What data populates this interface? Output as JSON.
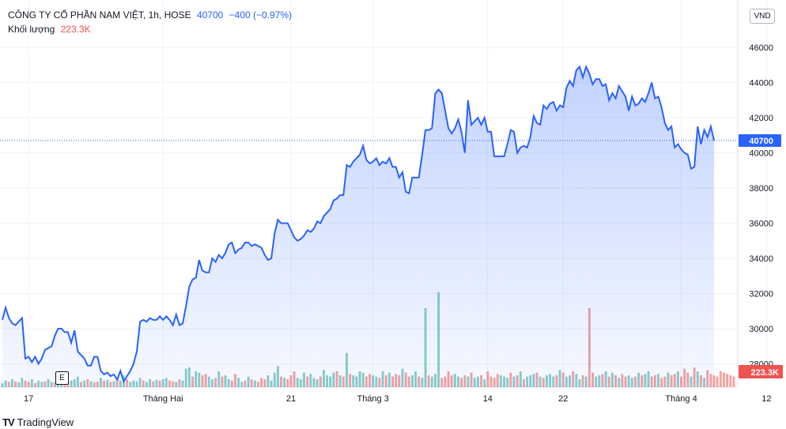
{
  "legend": {
    "title": "CÔNG TY CỔ PHẦN NAM VIỆT, 1h, HOSE",
    "price": "40700",
    "change": "−400 (−0.97%)",
    "volume_label": "Khối lượng",
    "volume": "223.3K"
  },
  "currency": "VND",
  "event_flag": "E",
  "brand": {
    "name": "TradingView",
    "logo": "TV"
  },
  "colors": {
    "line": "#2962ff",
    "area": "#2962ff",
    "vol_up": "#26a69a",
    "vol_down": "#ef5350",
    "grid": "#f0f3fa",
    "last_label": "#2962ff",
    "vol_label": "#ef5350"
  },
  "chart_data": {
    "type": "area",
    "yticks": [
      28000,
      30000,
      32000,
      34000,
      36000,
      38000,
      40000,
      42000,
      44000,
      46000
    ],
    "ylim": [
      26500,
      46000
    ],
    "xlabels": [
      "17",
      "Tháng Hai",
      "21",
      "Tháng 3",
      "14",
      "22",
      "Tháng 4",
      "12"
    ],
    "xlabel_index": [
      8,
      49,
      88,
      113,
      148,
      171,
      207,
      233
    ],
    "last_price": 40700,
    "last_volume": "223.3K",
    "prices": [
      30500,
      31200,
      30600,
      30300,
      30200,
      30400,
      30600,
      28300,
      28400,
      28100,
      28400,
      28000,
      28300,
      28800,
      28900,
      29000,
      29600,
      30000,
      30000,
      29800,
      29800,
      29200,
      29900,
      28700,
      28500,
      28300,
      27900,
      27900,
      28400,
      28400,
      27600,
      27400,
      27500,
      27300,
      27400,
      27100,
      27600,
      27000,
      27300,
      27600,
      28000,
      28700,
      30400,
      30500,
      30400,
      30600,
      30500,
      30500,
      30700,
      30500,
      30700,
      30500,
      30200,
      30800,
      30200,
      30300,
      31300,
      32400,
      32800,
      32900,
      33900,
      33300,
      33200,
      33200,
      34000,
      33800,
      34200,
      34000,
      34300,
      34800,
      34900,
      34300,
      34500,
      34600,
      34900,
      34900,
      34700,
      34800,
      34700,
      34600,
      34200,
      33900,
      34000,
      35400,
      36200,
      36000,
      36000,
      36000,
      35600,
      35200,
      35000,
      35100,
      35300,
      35600,
      35500,
      35700,
      36100,
      36000,
      36400,
      36600,
      36800,
      37300,
      37400,
      37600,
      37600,
      39300,
      39200,
      39500,
      39700,
      39900,
      40400,
      39600,
      39400,
      39500,
      39700,
      39300,
      39500,
      39400,
      39700,
      39200,
      39200,
      38600,
      38900,
      37800,
      37700,
      38600,
      38600,
      38600,
      39900,
      41300,
      41300,
      41400,
      43400,
      43600,
      43400,
      42400,
      41400,
      41100,
      41400,
      41900,
      41200,
      40000,
      43000,
      41600,
      41800,
      42000,
      41600,
      42000,
      41200,
      41200,
      39800,
      39800,
      39800,
      39800,
      40500,
      41300,
      41200,
      40000,
      40300,
      40400,
      40300,
      40900,
      42100,
      41700,
      41600,
      42700,
      42500,
      42800,
      42900,
      42400,
      42700,
      42600,
      43700,
      44100,
      43800,
      44700,
      44900,
      44300,
      44900,
      44500,
      43900,
      44200,
      44200,
      43800,
      43900,
      43000,
      43400,
      43100,
      43800,
      43500,
      43200,
      42400,
      43200,
      42700,
      42800,
      43100,
      42900,
      43400,
      44000,
      43100,
      43200,
      42600,
      41700,
      41300,
      41500,
      40300,
      40500,
      40200,
      40000,
      39900,
      39100,
      39200,
      41500,
      40500,
      41300,
      40900,
      41500,
      40700
    ],
    "volumes": [
      15,
      25,
      20,
      30,
      22,
      18,
      35,
      25,
      20,
      30,
      15,
      25,
      20,
      22,
      30,
      20,
      18,
      25,
      35,
      22,
      20,
      25,
      30,
      40,
      20,
      25,
      30,
      22,
      18,
      20,
      35,
      25,
      28,
      20,
      22,
      30,
      25,
      45,
      30,
      20,
      25,
      22,
      35,
      25,
      20,
      30,
      22,
      28,
      25,
      30,
      35,
      25,
      22,
      20,
      30,
      25,
      70,
      75,
      40,
      60,
      55,
      45,
      50,
      40,
      30,
      35,
      60,
      40,
      45,
      30,
      25,
      50,
      35,
      20,
      25,
      40,
      30,
      25,
      20,
      35,
      30,
      45,
      25,
      55,
      80,
      40,
      35,
      30,
      45,
      60,
      35,
      30,
      55,
      40,
      50,
      35,
      30,
      40,
      65,
      45,
      40,
      55,
      60,
      45,
      40,
      130,
      50,
      45,
      40,
      60,
      55,
      40,
      50,
      45,
      40,
      35,
      60,
      45,
      55,
      40,
      50,
      45,
      70,
      55,
      40,
      45,
      60,
      40,
      35,
      300,
      45,
      40,
      50,
      360,
      35,
      40,
      60,
      45,
      50,
      40,
      35,
      45,
      40,
      55,
      35,
      40,
      45,
      30,
      60,
      40,
      35,
      50,
      45,
      40,
      35,
      55,
      40,
      45,
      60,
      30,
      40,
      45,
      50,
      55,
      40,
      35,
      45,
      50,
      40,
      45,
      65,
      55,
      40,
      45,
      60,
      50,
      30,
      45,
      40,
      300,
      55,
      40,
      45,
      50,
      60,
      40,
      55,
      45,
      35,
      50,
      40,
      45,
      35,
      40,
      55,
      45,
      50,
      60,
      40,
      45,
      50,
      35,
      40,
      55,
      45,
      50,
      60,
      40,
      70,
      55,
      40,
      75,
      60,
      45,
      35,
      65,
      50,
      45,
      40,
      60,
      55,
      50,
      45,
      40
    ],
    "vol_up": [
      1,
      1,
      0,
      1,
      0,
      1,
      1,
      0,
      0,
      1,
      0,
      1,
      1,
      0,
      1,
      1,
      0,
      1,
      1,
      0,
      0,
      1,
      1,
      1,
      0,
      1,
      0,
      1,
      0,
      0,
      1,
      0,
      1,
      0,
      1,
      0,
      1,
      1,
      0,
      1,
      1,
      1,
      1,
      0,
      1,
      1,
      0,
      1,
      0,
      1,
      1,
      0,
      0,
      1,
      0,
      1,
      1,
      1,
      0,
      1,
      1,
      0,
      0,
      1,
      1,
      0,
      1,
      0,
      1,
      1,
      0,
      0,
      1,
      1,
      0,
      1,
      0,
      1,
      0,
      0,
      0,
      1,
      1,
      1,
      1,
      0,
      1,
      0,
      0,
      0,
      1,
      1,
      1,
      0,
      1,
      1,
      1,
      0,
      1,
      1,
      1,
      1,
      0,
      1,
      0,
      1,
      0,
      1,
      1,
      1,
      1,
      0,
      0,
      1,
      1,
      0,
      1,
      0,
      1,
      0,
      0,
      0,
      1,
      0,
      0,
      1,
      1,
      0,
      1,
      1,
      0,
      1,
      1,
      1,
      0,
      0,
      0,
      0,
      1,
      1,
      0,
      0,
      1,
      0,
      1,
      1,
      0,
      1,
      0,
      0,
      0,
      0,
      1,
      1,
      1,
      0,
      1,
      0,
      1,
      0,
      1,
      1,
      1,
      0,
      1,
      0,
      1,
      1,
      1,
      0,
      1,
      0,
      1,
      1,
      0,
      1,
      1,
      0,
      1,
      0,
      0,
      1,
      1,
      0,
      1,
      0,
      1,
      0,
      1,
      0,
      0,
      1,
      1,
      0,
      1,
      0,
      1,
      1,
      0,
      0,
      1,
      0,
      0,
      1,
      0,
      0,
      1,
      0,
      0,
      0,
      1,
      0,
      1,
      0,
      1,
      0
    ]
  }
}
